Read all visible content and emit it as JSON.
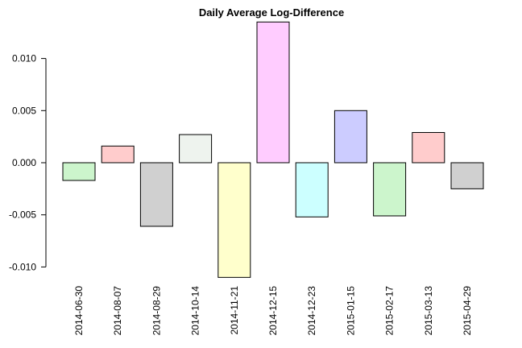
{
  "chart_data": {
    "type": "bar",
    "title": "Daily Average Log-Difference",
    "xlabel": "",
    "ylabel": "",
    "ylim": [
      -0.0115,
      0.0135
    ],
    "y_ticks": [
      -0.01,
      -0.005,
      0.0,
      0.005,
      0.01
    ],
    "y_tick_labels": [
      "-0.010",
      "-0.005",
      "0.000",
      "0.005",
      "0.010"
    ],
    "grid": false,
    "legend": "none",
    "categories": [
      "2014-06-30",
      "2014-08-07",
      "2014-08-29",
      "2014-10-14",
      "2014-11-21",
      "2014-12-15",
      "2014-12-23",
      "2015-01-15",
      "2015-02-17",
      "2015-03-13",
      "2015-04-29"
    ],
    "values": [
      -0.0017,
      0.0016,
      -0.0061,
      0.0027,
      -0.011,
      0.0135,
      -0.0052,
      0.005,
      -0.0051,
      0.0029,
      -0.0025
    ],
    "colors": [
      "#ccf5cc",
      "#ffcccc",
      "#d0d0d0",
      "#eef3ee",
      "#ffffcc",
      "#ffccff",
      "#ccffff",
      "#ccccff",
      "#ccf5cc",
      "#ffcccc",
      "#d0d0d0"
    ]
  }
}
